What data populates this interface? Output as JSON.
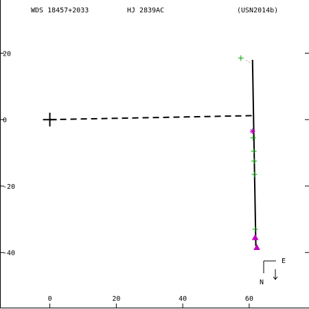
{
  "header": {
    "wds_id": "WDS 18457+2033",
    "discoverer": "HJ 2839AC",
    "orbit_ref": "(USN2014b)"
  },
  "compass": {
    "north_label": "N",
    "east_label": "E"
  },
  "chart_data": {
    "type": "scatter",
    "xlim": [
      -15,
      78
    ],
    "ylim": [
      -57,
      36
    ],
    "xticks": [
      0,
      20,
      40,
      60
    ],
    "yticks": [
      20,
      0,
      -20,
      -40
    ],
    "grid": false,
    "primary": {
      "x": 0,
      "y": 0,
      "marker": "+"
    },
    "separation_line": {
      "from": [
        0,
        0
      ],
      "to": [
        61,
        1.2
      ],
      "style": "dashed"
    },
    "orbit_segment": {
      "from": [
        61,
        18
      ],
      "to": [
        62,
        -38
      ],
      "style": "solid"
    },
    "series": [
      {
        "marker": "+",
        "color": "#00a000",
        "points": [
          [
            57.5,
            18.5
          ],
          [
            61.2,
            -5.5
          ],
          [
            61.4,
            -9.5
          ],
          [
            61.5,
            -12.5
          ],
          [
            61.6,
            -16.5
          ],
          [
            61.8,
            -33
          ]
        ]
      },
      {
        "marker": "*",
        "color": "#c000c0",
        "points": [
          [
            61,
            -3.5
          ]
        ]
      },
      {
        "marker": "triangle",
        "color": "#c000c0",
        "points": [
          [
            61.8,
            -35.5
          ],
          [
            62.3,
            -38.5
          ]
        ]
      }
    ],
    "dotted_note": {
      "from": [
        59.2,
        17.8
      ],
      "to": [
        60.6,
        17.0
      ]
    }
  }
}
